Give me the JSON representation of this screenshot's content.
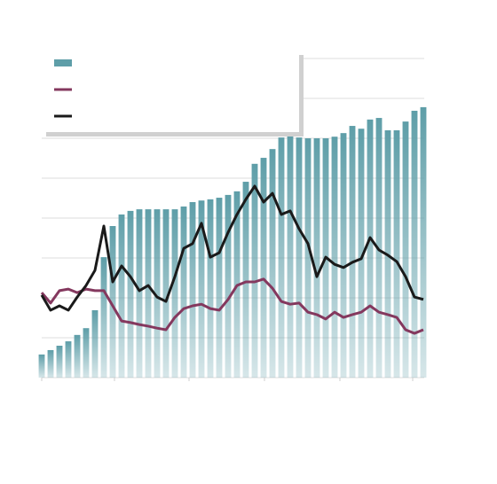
{
  "chart_data": {
    "type": "bar-line",
    "x": [
      0,
      1,
      2,
      3,
      4,
      5,
      6,
      7,
      8,
      9,
      10,
      11,
      12,
      13,
      14,
      15,
      16,
      17,
      18,
      19,
      20,
      21,
      22,
      23,
      24,
      25,
      26,
      27,
      28,
      29,
      30,
      31,
      32,
      33,
      34,
      35,
      36,
      37,
      38,
      39,
      40,
      41,
      42,
      43
    ],
    "xlim": [
      0,
      43.1
    ],
    "xticks": [
      0,
      8.2,
      16.6,
      25.1,
      33.6,
      41.8
    ],
    "ylim": [
      0,
      8
    ],
    "yticks": [
      0,
      1,
      2,
      3,
      4,
      5,
      6,
      7,
      8
    ],
    "grid": true,
    "legend": "top-left",
    "series": [
      {
        "type": "bar",
        "color": "#5e9ea8",
        "values": [
          0.58,
          0.69,
          0.8,
          0.91,
          1.07,
          1.24,
          1.69,
          3.02,
          3.8,
          4.09,
          4.18,
          4.22,
          4.22,
          4.22,
          4.22,
          4.22,
          4.29,
          4.4,
          4.44,
          4.47,
          4.51,
          4.58,
          4.67,
          4.91,
          5.36,
          5.51,
          5.73,
          6.02,
          6.07,
          6.02,
          6.0,
          6.0,
          6.0,
          6.04,
          6.13,
          6.31,
          6.24,
          6.47,
          6.51,
          6.2,
          6.2,
          6.42,
          6.69,
          6.78
        ]
      },
      {
        "type": "line",
        "color": "#84385e",
        "values": [
          2.13,
          1.87,
          2.18,
          2.22,
          2.13,
          2.22,
          2.18,
          2.18,
          1.8,
          1.42,
          1.38,
          1.33,
          1.29,
          1.24,
          1.2,
          1.51,
          1.73,
          1.8,
          1.84,
          1.73,
          1.69,
          1.96,
          2.31,
          2.4,
          2.4,
          2.47,
          2.24,
          1.91,
          1.84,
          1.87,
          1.64,
          1.58,
          1.47,
          1.64,
          1.51,
          1.58,
          1.64,
          1.8,
          1.64,
          1.58,
          1.51,
          1.2,
          1.11,
          1.2
        ]
      },
      {
        "type": "line",
        "color": "#1a1a1a",
        "values": [
          2.07,
          1.69,
          1.8,
          1.69,
          2.02,
          2.31,
          2.69,
          3.8,
          2.4,
          2.8,
          2.53,
          2.18,
          2.31,
          2.02,
          1.91,
          2.53,
          3.24,
          3.36,
          3.87,
          3.02,
          3.13,
          3.64,
          4.09,
          4.47,
          4.8,
          4.4,
          4.62,
          4.09,
          4.18,
          3.73,
          3.36,
          2.53,
          3.02,
          2.84,
          2.76,
          2.89,
          2.98,
          3.51,
          3.2,
          3.07,
          2.91,
          2.53,
          2.02,
          1.96
        ]
      }
    ]
  }
}
